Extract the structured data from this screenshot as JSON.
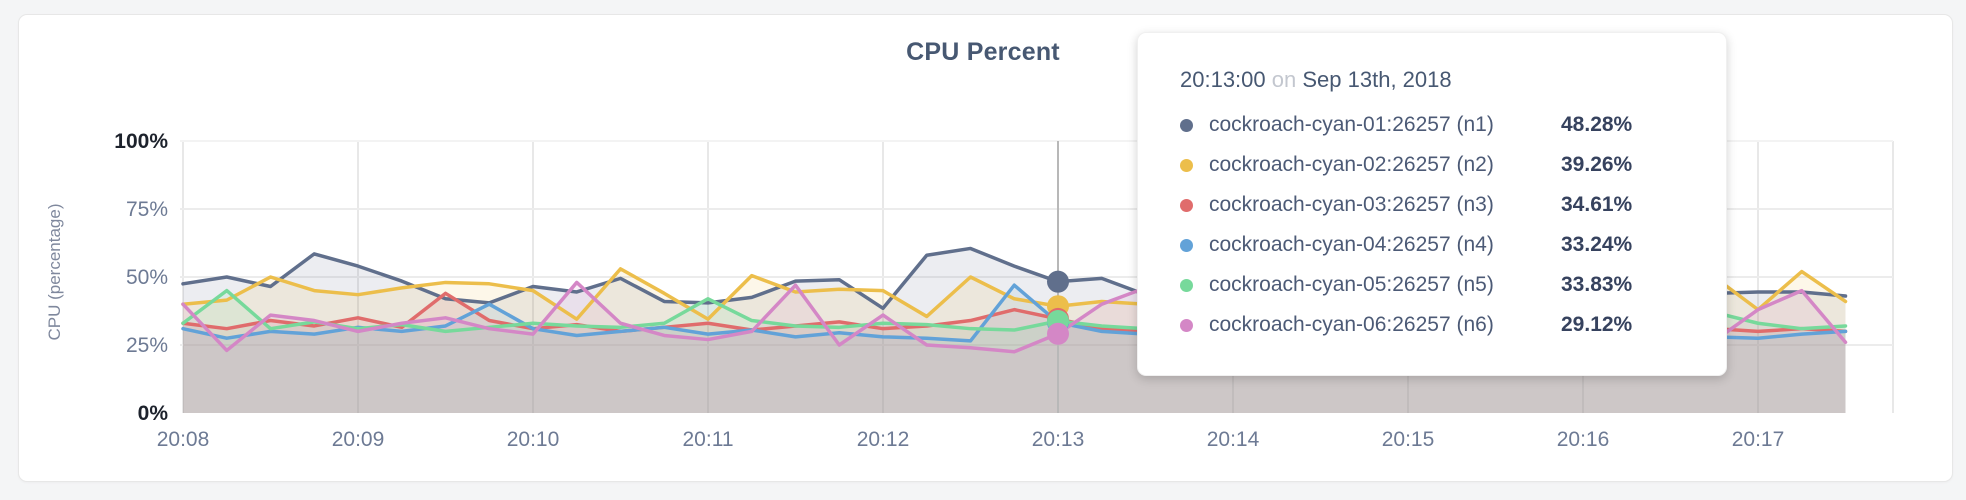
{
  "chart_data": {
    "type": "area",
    "title": "CPU Percent",
    "xlabel": "",
    "ylabel": "CPU (percentage)",
    "ylim": [
      0,
      100
    ],
    "grid": true,
    "y_ticks": [
      {
        "label": "0%",
        "value": 0,
        "emphasis": true
      },
      {
        "label": "25%",
        "value": 25,
        "emphasis": false
      },
      {
        "label": "50%",
        "value": 50,
        "emphasis": false
      },
      {
        "label": "75%",
        "value": 75,
        "emphasis": false
      },
      {
        "label": "100%",
        "value": 100,
        "emphasis": true
      }
    ],
    "x_ticks": [
      "20:08",
      "20:09",
      "20:10",
      "20:11",
      "20:12",
      "20:13",
      "20:14",
      "20:15",
      "20:16",
      "20:17"
    ],
    "x_start": "20:08:00",
    "x_interval_seconds": 15,
    "hover": {
      "index": 20,
      "time": "20:13:00"
    },
    "series": [
      {
        "name": "cockroach-cyan-01:26257 (n1)",
        "color": "#606f8c",
        "values": [
          47.5,
          50,
          46.5,
          58.5,
          54,
          48.5,
          42,
          40.5,
          46.5,
          44.5,
          49.5,
          41,
          40.5,
          42.5,
          48.5,
          49,
          38.5,
          58,
          60.5,
          54,
          48.28,
          49.5,
          43.5,
          46,
          47,
          45,
          46.5,
          48,
          44.5,
          46,
          45.5,
          47,
          44,
          45,
          46.5,
          44,
          44.5,
          44.5,
          43
        ]
      },
      {
        "name": "cockroach-cyan-02:26257 (n2)",
        "color": "#ecbe4b",
        "values": [
          40,
          41.5,
          50,
          45,
          43.5,
          46,
          48,
          47.5,
          45,
          34.5,
          53,
          44,
          34.5,
          50.5,
          44.5,
          45.5,
          45,
          35.5,
          50,
          42,
          39.26,
          41,
          40,
          42,
          41,
          43,
          42,
          40.5,
          42,
          41,
          43,
          42,
          41,
          43,
          44,
          50,
          38,
          52,
          41
        ]
      },
      {
        "name": "cockroach-cyan-03:26257 (n3)",
        "color": "#e06c6c",
        "values": [
          33,
          31,
          34,
          32,
          35,
          31.5,
          44,
          34,
          31,
          32.5,
          30,
          31.5,
          33,
          30.5,
          32,
          33.5,
          31,
          32,
          34,
          38,
          34.61,
          31,
          30,
          31.5,
          30.5,
          32,
          31,
          30.5,
          32,
          31,
          30.5,
          32,
          36,
          31,
          30.5,
          31,
          30,
          31,
          30
        ]
      },
      {
        "name": "cockroach-cyan-04:26257 (n4)",
        "color": "#62a2d8",
        "values": [
          31,
          27.5,
          30,
          29,
          31.5,
          30,
          32,
          40,
          31,
          28.5,
          30,
          31.5,
          29,
          30.5,
          28,
          29.5,
          28,
          27.5,
          26.5,
          47,
          33.24,
          30,
          29,
          30.5,
          29,
          30.5,
          29.5,
          28,
          30,
          29,
          30.5,
          29,
          28.5,
          30,
          29,
          28,
          27.5,
          29,
          30
        ]
      },
      {
        "name": "cockroach-cyan-05:26257 (n5)",
        "color": "#77d99b",
        "values": [
          33,
          45,
          31,
          33.5,
          31,
          32.5,
          30,
          31.5,
          33,
          32,
          31.5,
          33,
          42,
          34,
          32,
          31.5,
          33,
          32.5,
          31,
          30.5,
          33.83,
          32,
          31,
          32.5,
          31.5,
          33,
          32,
          31.5,
          33,
          32,
          31.5,
          33,
          32,
          31.5,
          33,
          37,
          33,
          31,
          32
        ]
      },
      {
        "name": "cockroach-cyan-06:26257 (n6)",
        "color": "#d487c6",
        "values": [
          40,
          23,
          36,
          34,
          30,
          33,
          35,
          31,
          29,
          48,
          33,
          28.5,
          27,
          30,
          47,
          25,
          36,
          25,
          24,
          22.5,
          29.12,
          40,
          46,
          30,
          27,
          28.5,
          26,
          27.5,
          29,
          26.5,
          28,
          27,
          29.5,
          27,
          26,
          26.5,
          38,
          45,
          26
        ]
      }
    ]
  },
  "tooltip": {
    "time": "20:13:00",
    "connector": "on",
    "date": "Sep 13th, 2018",
    "rows": [
      {
        "name": "cockroach-cyan-01:26257 (n1)",
        "value": "48.28%",
        "color": "#606f8c"
      },
      {
        "name": "cockroach-cyan-02:26257 (n2)",
        "value": "39.26%",
        "color": "#ecbe4b"
      },
      {
        "name": "cockroach-cyan-03:26257 (n3)",
        "value": "34.61%",
        "color": "#e06c6c"
      },
      {
        "name": "cockroach-cyan-04:26257 (n4)",
        "value": "33.24%",
        "color": "#62a2d8"
      },
      {
        "name": "cockroach-cyan-05:26257 (n5)",
        "value": "33.83%",
        "color": "#77d99b"
      },
      {
        "name": "cockroach-cyan-06:26257 (n6)",
        "value": "29.12%",
        "color": "#d487c6"
      }
    ]
  },
  "colors": {
    "title_text": "#475872",
    "tick_emphasis": "#1d222c",
    "tick_normal": "#6d7a94",
    "grid_h": "#ececec",
    "grid_v": "#e8e8e8",
    "hover_line": "#b8b8b8",
    "card_background": "#ffffff",
    "page_background": "#f4f5f6"
  }
}
